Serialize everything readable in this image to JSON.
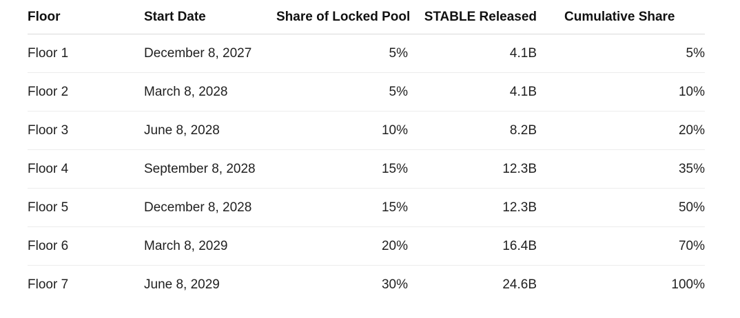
{
  "table": {
    "headers": {
      "floor": "Floor",
      "start_date": "Start Date",
      "share": "Share of Locked Pool",
      "stable": "STABLE Released",
      "cumulative": "Cumulative Share"
    },
    "rows": [
      {
        "floor": "Floor 1",
        "start_date": "December 8, 2027",
        "share": "5%",
        "stable": "4.1B",
        "cumulative": "5%"
      },
      {
        "floor": "Floor 2",
        "start_date": "March 8, 2028",
        "share": "5%",
        "stable": "4.1B",
        "cumulative": "10%"
      },
      {
        "floor": "Floor 3",
        "start_date": "June 8, 2028",
        "share": "10%",
        "stable": "8.2B",
        "cumulative": "20%"
      },
      {
        "floor": "Floor 4",
        "start_date": "September 8, 2028",
        "share": "15%",
        "stable": "12.3B",
        "cumulative": "35%"
      },
      {
        "floor": "Floor 5",
        "start_date": "December 8, 2028",
        "share": "15%",
        "stable": "12.3B",
        "cumulative": "50%"
      },
      {
        "floor": "Floor 6",
        "start_date": "March 8, 2029",
        "share": "20%",
        "stable": "16.4B",
        "cumulative": "70%"
      },
      {
        "floor": "Floor 7",
        "start_date": "June 8, 2029",
        "share": "30%",
        "stable": "24.6B",
        "cumulative": "100%"
      }
    ]
  }
}
